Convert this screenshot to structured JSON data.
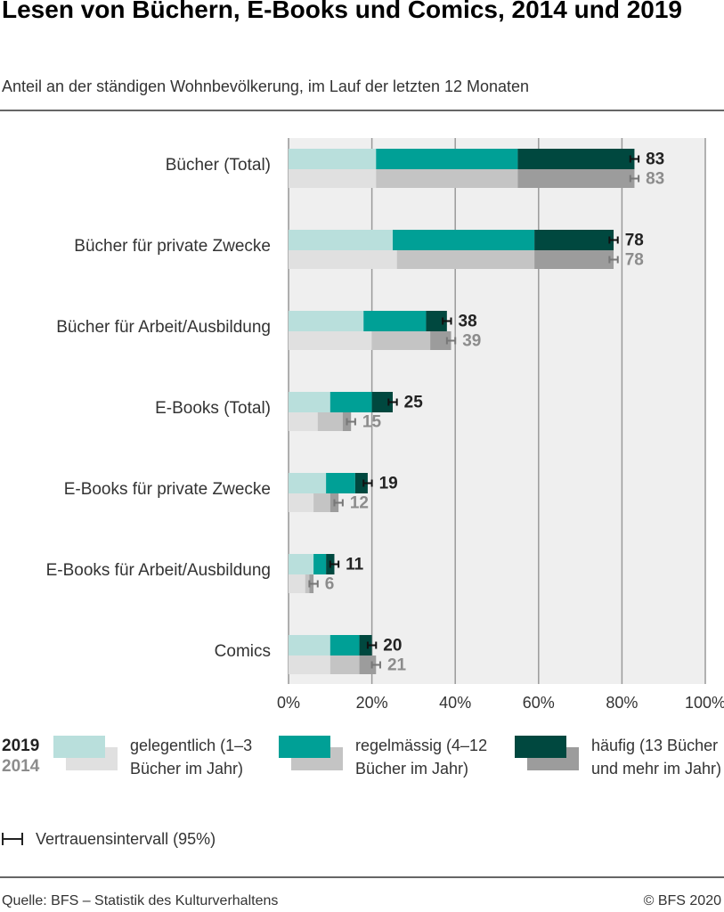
{
  "chart_data": {
    "type": "paired_stacked_bar",
    "title": "Lesen von Büchern, E-Books und Comics, 2014 und 2019",
    "subtitle": "Anteil an der ständigen Wohnbevölkerung, im Lauf der letzten 12 Monaten",
    "categories": [
      "Bücher (Total)",
      "Bücher für private Zwecke",
      "Bücher für Arbeit/Ausbildung",
      "E-Books (Total)",
      "E-Books für private Zwecke",
      "E-Books für Arbeit/Ausbildung",
      "Comics"
    ],
    "xlim": [
      0,
      100
    ],
    "xticks": [
      {
        "value": 0,
        "label": "0%"
      },
      {
        "value": 20,
        "label": "20%"
      },
      {
        "value": 40,
        "label": "40%"
      },
      {
        "value": 60,
        "label": "60%"
      },
      {
        "value": 80,
        "label": "80%"
      },
      {
        "value": 100,
        "label": "100%"
      }
    ],
    "grid": true,
    "legend_names": [
      "gelegentlich (1–3 Bücher im Jahr)",
      "regelmässig (4–12 Bücher im Jahr)",
      "häufig (13 Bücher und mehr im Jahr)"
    ],
    "ci_label": "Vertrauensintervall (95%)",
    "years": [
      {
        "label": "2019",
        "label_color": "#222222",
        "totals": [
          83,
          78,
          38,
          25,
          19,
          11,
          20
        ],
        "errors": [
          1,
          1,
          1,
          1,
          1,
          1,
          1
        ],
        "series": [
          {
            "color": "#b9dfdc",
            "values": [
              21,
              25,
              18,
              10,
              9,
              6,
              10
            ]
          },
          {
            "color": "#00a096",
            "values": [
              34,
              34,
              15,
              10,
              7,
              3,
              7
            ]
          },
          {
            "color": "#00483f",
            "values": [
              28,
              19,
              5,
              5,
              3,
              2,
              3
            ]
          }
        ]
      },
      {
        "label": "2014",
        "label_color": "#8c8c8c",
        "totals": [
          83,
          78,
          39,
          15,
          12,
          6,
          21
        ],
        "errors": [
          1,
          1,
          1,
          1,
          1,
          1,
          1
        ],
        "series": [
          {
            "color": "#e0e0e0",
            "values": [
              21,
              26,
              20,
              7,
              6,
              4,
              10
            ]
          },
          {
            "color": "#c4c4c4",
            "values": [
              34,
              33,
              14,
              6,
              4,
              1,
              7
            ]
          },
          {
            "color": "#9c9c9c",
            "values": [
              28,
              19,
              5,
              2,
              2,
              1,
              4
            ]
          }
        ]
      }
    ]
  },
  "footer": {
    "source": "Quelle: BFS – Statistik des Kulturverhaltens",
    "copyright": "© BFS 2020"
  }
}
